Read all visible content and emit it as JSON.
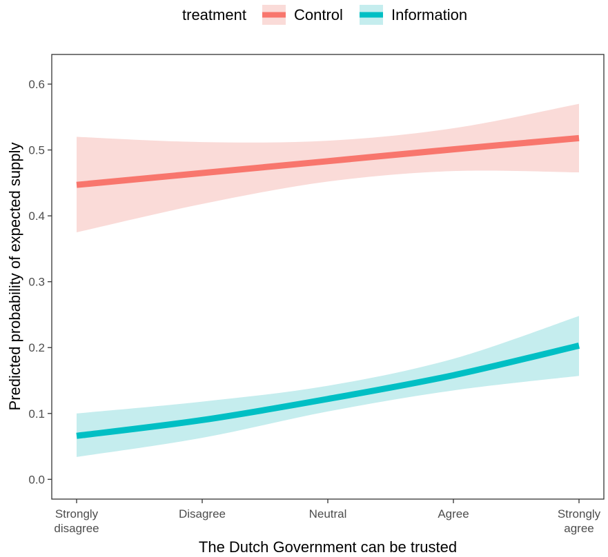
{
  "legend": {
    "title": "treatment",
    "entries": [
      {
        "label": "Control",
        "line_color": "#F8766D",
        "fill_color": "#FADBD8"
      },
      {
        "label": "Information",
        "line_color": "#00BFC4",
        "fill_color": "#C5EDEE"
      }
    ]
  },
  "chart_data": {
    "type": "line",
    "xlabel": "The Dutch Government can be trusted",
    "ylabel": "Predicted probability of expected supply",
    "categories": [
      [
        "Strongly",
        "disagree"
      ],
      [
        "Disagree"
      ],
      [
        "Neutral"
      ],
      [
        "Agree"
      ],
      [
        "Strongly",
        "agree"
      ]
    ],
    "ylim": [
      -0.03,
      0.645
    ],
    "yticks": [
      0.0,
      0.1,
      0.2,
      0.3,
      0.4,
      0.5,
      0.6
    ],
    "ytick_labels": [
      "0.0",
      "0.1",
      "0.2",
      "0.3",
      "0.4",
      "0.5",
      "0.6"
    ],
    "grid": false,
    "legend_position": "top",
    "series": [
      {
        "name": "Control",
        "color": "#F8766D",
        "ribbon_color": "#FADBD8",
        "values": [
          0.447,
          0.465,
          0.483,
          0.501,
          0.518
        ],
        "lower": [
          0.375,
          0.418,
          0.452,
          0.468,
          0.466
        ],
        "upper": [
          0.52,
          0.512,
          0.514,
          0.533,
          0.57
        ]
      },
      {
        "name": "Information",
        "color": "#00BFC4",
        "ribbon_color": "#C5EDEE",
        "values": [
          0.066,
          0.09,
          0.122,
          0.158,
          0.203
        ],
        "lower": [
          0.034,
          0.063,
          0.103,
          0.135,
          0.157
        ],
        "upper": [
          0.1,
          0.118,
          0.142,
          0.183,
          0.248
        ]
      }
    ]
  }
}
